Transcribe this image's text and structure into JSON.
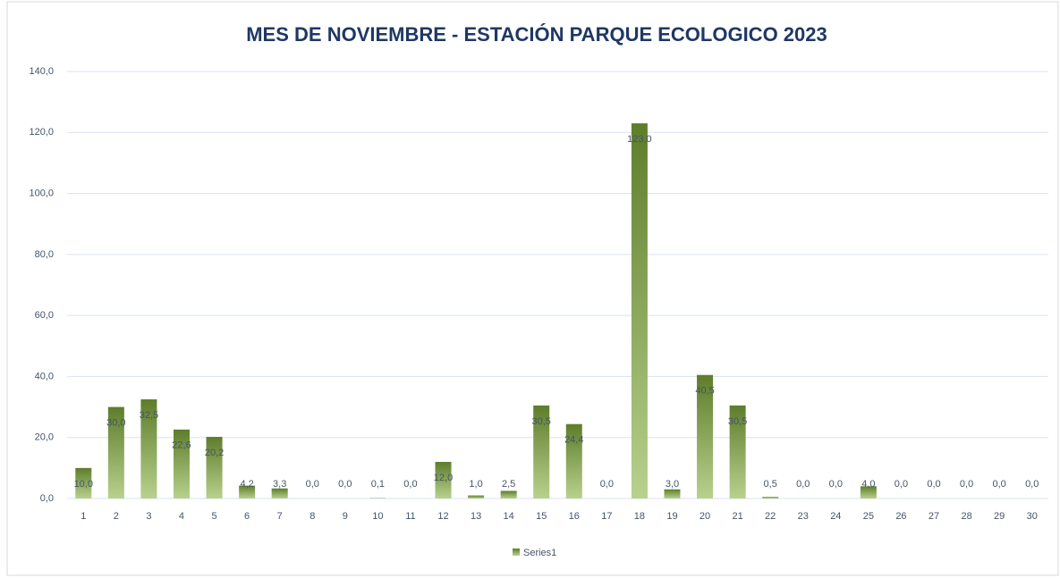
{
  "chart_data": {
    "type": "bar",
    "title": "MES DE NOVIEMBRE - ESTACIÓN PARQUE ECOLOGICO 2023",
    "categories": [
      "1",
      "2",
      "3",
      "4",
      "5",
      "6",
      "7",
      "8",
      "9",
      "10",
      "11",
      "12",
      "13",
      "14",
      "15",
      "16",
      "17",
      "18",
      "19",
      "20",
      "21",
      "22",
      "23",
      "24",
      "25",
      "26",
      "27",
      "28",
      "29",
      "30"
    ],
    "series": [
      {
        "name": "Series1",
        "color": "#5e7d2b",
        "values": [
          10.0,
          30.0,
          32.5,
          22.6,
          20.2,
          4.2,
          3.3,
          0.0,
          0.0,
          0.1,
          0.0,
          12.0,
          1.0,
          2.5,
          30.5,
          24.4,
          0.0,
          123.0,
          3.0,
          40.5,
          30.5,
          0.5,
          0.0,
          0.0,
          4.0,
          0.0,
          0.0,
          0.0,
          0.0,
          0.0
        ],
        "value_labels": [
          "10,0",
          "30,0",
          "32,5",
          "22,6",
          "20,2",
          "4,2",
          "3,3",
          "0,0",
          "0,0",
          "0,1",
          "0,0",
          "12,0",
          "1,0",
          "2,5",
          "30,5",
          "24,4",
          "0,0",
          "123,0",
          "3,0",
          "40,5",
          "30,5",
          "0,5",
          "0,0",
          "0,0",
          "4,0",
          "0,0",
          "0,0",
          "0,0",
          "0,0",
          "0,0"
        ]
      }
    ],
    "ylim": [
      0,
      140
    ],
    "yticks": [
      {
        "value": 0,
        "label": "0,0"
      },
      {
        "value": 20,
        "label": "20,0"
      },
      {
        "value": 40,
        "label": "40,0"
      },
      {
        "value": 60,
        "label": "60,0"
      },
      {
        "value": 80,
        "label": "80,0"
      },
      {
        "value": 100,
        "label": "100,0"
      },
      {
        "value": 120,
        "label": "120,0"
      },
      {
        "value": 140,
        "label": "140,0"
      }
    ],
    "grid": true,
    "legend": "bottom"
  }
}
